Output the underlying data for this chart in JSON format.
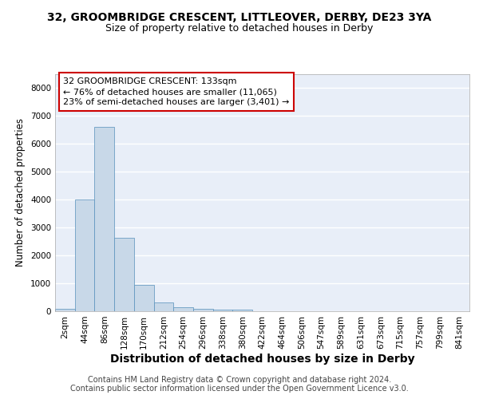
{
  "title1": "32, GROOMBRIDGE CRESCENT, LITTLEOVER, DERBY, DE23 3YA",
  "title2": "Size of property relative to detached houses in Derby",
  "xlabel": "Distribution of detached houses by size in Derby",
  "ylabel": "Number of detached properties",
  "bin_labels": [
    "2sqm",
    "44sqm",
    "86sqm",
    "128sqm",
    "170sqm",
    "212sqm",
    "254sqm",
    "296sqm",
    "338sqm",
    "380sqm",
    "422sqm",
    "464sqm",
    "506sqm",
    "547sqm",
    "589sqm",
    "631sqm",
    "673sqm",
    "715sqm",
    "757sqm",
    "799sqm",
    "841sqm"
  ],
  "bar_heights": [
    75,
    4000,
    6600,
    2620,
    950,
    310,
    130,
    75,
    65,
    50,
    0,
    0,
    0,
    0,
    0,
    0,
    0,
    0,
    0,
    0,
    0
  ],
  "bar_color": "#c8d8e8",
  "bar_edge_color": "#5590bb",
  "bg_color": "#e8eef8",
  "grid_color": "#ffffff",
  "annotation_line1": "32 GROOMBRIDGE CRESCENT: 133sqm",
  "annotation_line2": "← 76% of detached houses are smaller (11,065)",
  "annotation_line3": "23% of semi-detached houses are larger (3,401) →",
  "annotation_box_edge": "#cc0000",
  "ylim": [
    0,
    8500
  ],
  "yticks": [
    0,
    1000,
    2000,
    3000,
    4000,
    5000,
    6000,
    7000,
    8000
  ],
  "footer_text": "Contains HM Land Registry data © Crown copyright and database right 2024.\nContains public sector information licensed under the Open Government Licence v3.0.",
  "title1_fontsize": 10,
  "title2_fontsize": 9,
  "xlabel_fontsize": 10,
  "ylabel_fontsize": 8.5,
  "tick_fontsize": 7.5,
  "annotation_fontsize": 8,
  "footer_fontsize": 7
}
